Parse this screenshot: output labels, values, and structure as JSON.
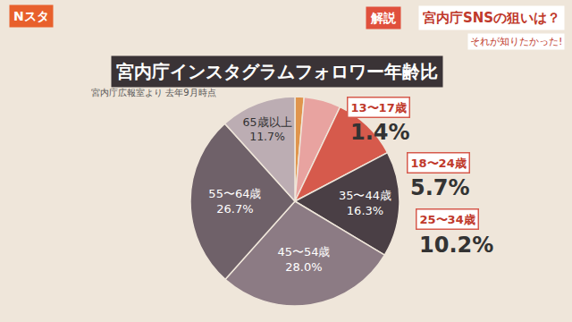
{
  "chart_data": {
    "type": "pie",
    "title": "宮内庁インスタグラムフォロワー年齢比",
    "subtitle": "宮内庁広報室より 去年9月時点",
    "annotations": [
      "Nスタ",
      "解説",
      "宮内庁SNSの狙いは？",
      "それが知りたかった!"
    ],
    "categories": [
      "13〜17歳",
      "18〜24歳",
      "25〜34歳",
      "35〜44歳",
      "45〜54歳",
      "55〜64歳",
      "65歳以上"
    ],
    "values": [
      1.4,
      5.7,
      10.2,
      16.3,
      28.0,
      26.7,
      11.7
    ],
    "value_labels": [
      "1.4%",
      "5.7%",
      "10.2%",
      "16.3%",
      "28.0%",
      "26.7%",
      "11.7%"
    ],
    "colors": [
      "#e0954c",
      "#e8a3a0",
      "#d65a4c",
      "#4a3f45",
      "#8c7b84",
      "#6f6169",
      "#bcadb3"
    ],
    "data_labels": true
  }
}
